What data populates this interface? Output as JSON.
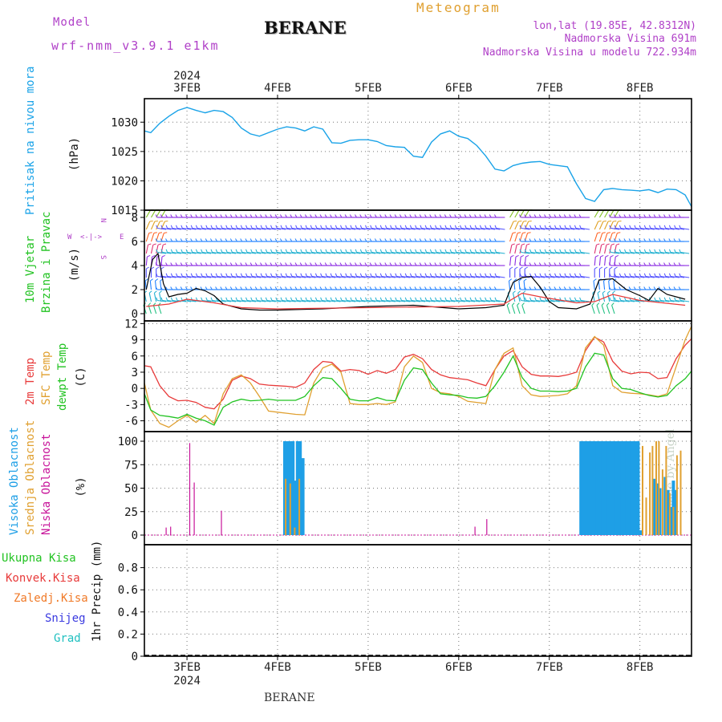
{
  "header": {
    "model_label": "Model",
    "model_name": "wrf-nmm_v3.9.1 e1km",
    "station": "BERANE",
    "meteogram": "Meteogram",
    "lonlat": "lon,lat (19.85E, 42.8312N)",
    "altitude": "Nadmorska Visina 691m",
    "altitude_model": "Nadmorska Visina u modelu 722.934m",
    "footer_station": "BERANE",
    "credit": "made by Angel",
    "year_top": "2024",
    "year_bottom": "2024"
  },
  "colors": {
    "pressure": "#1aa3e8",
    "t2m": "#e83a3a",
    "sfc": "#e0a030",
    "dew": "#22c322",
    "high_cloud": "#1e9fe6",
    "mid_cloud": "#e0a030",
    "low_cloud": "#c8149a",
    "purple": "#b040c8",
    "meteogram": "#e0a030"
  },
  "chart_data": [
    {
      "type": "line",
      "panel": "pressure",
      "ylabels": [
        "Pritisak na nivou mora",
        "(hPa)"
      ],
      "yticks": [
        "1030",
        "1025",
        "1020",
        "1015"
      ],
      "ylim": [
        1015,
        1034
      ],
      "x_days": [
        "3FEB",
        "4FEB",
        "5FEB",
        "6FEB",
        "7FEB",
        "8FEB"
      ],
      "x_start_day": 2.53,
      "x_end_day": 8.57,
      "series": [
        {
          "x": [
            2.53,
            2.6,
            2.7,
            2.8,
            2.9,
            3.0,
            3.1,
            3.2,
            3.3,
            3.4,
            3.5,
            3.6,
            3.7,
            3.8,
            3.9,
            4.0,
            4.1,
            4.2,
            4.3,
            4.4,
            4.5,
            4.6,
            4.7,
            4.8,
            4.9,
            5.0,
            5.1,
            5.2,
            5.3,
            5.4,
            5.5,
            5.6,
            5.7,
            5.8,
            5.9,
            6.0,
            6.1,
            6.2,
            6.3,
            6.4,
            6.5,
            6.6,
            6.7,
            6.8,
            6.9,
            7.0,
            7.1,
            7.2,
            7.3,
            7.4,
            7.5,
            7.6,
            7.7,
            7.8,
            7.9,
            8.0,
            8.1,
            8.2,
            8.3,
            8.4,
            8.5,
            8.57
          ],
          "y": [
            1028.5,
            1028.2,
            1029.8,
            1031.0,
            1032.0,
            1032.5,
            1032.0,
            1031.6,
            1032.0,
            1031.8,
            1030.8,
            1029.0,
            1028.0,
            1027.6,
            1028.2,
            1028.8,
            1029.2,
            1029.0,
            1028.5,
            1029.2,
            1028.8,
            1026.5,
            1026.4,
            1026.9,
            1027.0,
            1027.0,
            1026.7,
            1026.0,
            1025.8,
            1025.7,
            1024.2,
            1024.0,
            1026.6,
            1028.0,
            1028.5,
            1027.6,
            1027.2,
            1026.0,
            1024.2,
            1022.0,
            1021.7,
            1022.6,
            1023.0,
            1023.2,
            1023.3,
            1022.8,
            1022.6,
            1022.4,
            1019.5,
            1017.0,
            1016.5,
            1018.5,
            1018.7,
            1018.5,
            1018.4,
            1018.3,
            1018.5,
            1018.0,
            1018.6,
            1018.5,
            1017.6,
            1015.6
          ],
          "color": "pressure"
        }
      ]
    },
    {
      "type": "line",
      "panel": "wind",
      "ylabels": [
        "10m Vjetar",
        "Brzina i Pravac",
        "(m/s)"
      ],
      "compass": {
        "w": "W",
        "e": "E",
        "n": "N",
        "s": "S",
        "arrows": "<-|->"
      },
      "yticks": [
        "8",
        "6",
        "4",
        "2",
        "0"
      ],
      "ylim": [
        -0.6,
        8.6
      ],
      "series": [
        {
          "name": "wind speed",
          "x": [
            2.55,
            2.62,
            2.68,
            2.74,
            2.8,
            2.9,
            3.0,
            3.1,
            3.2,
            3.3,
            3.4,
            3.6,
            3.8,
            4.0,
            4.5,
            5.0,
            5.5,
            6.0,
            6.3,
            6.5,
            6.6,
            6.7,
            6.8,
            6.9,
            7.0,
            7.1,
            7.3,
            7.45,
            7.55,
            7.7,
            7.85,
            8.0,
            8.1,
            8.2,
            8.3,
            8.5
          ],
          "y": [
            2.0,
            4.5,
            5.0,
            2.5,
            1.4,
            1.6,
            1.7,
            2.1,
            1.9,
            1.5,
            0.8,
            0.4,
            0.3,
            0.3,
            0.4,
            0.6,
            0.7,
            0.4,
            0.5,
            0.7,
            2.6,
            3.0,
            3.1,
            2.2,
            1.0,
            0.5,
            0.4,
            0.8,
            2.8,
            2.9,
            2.0,
            1.5,
            1.1,
            2.1,
            1.6,
            1.2
          ],
          "color": "black"
        },
        {
          "name": "gust",
          "x": [
            2.55,
            2.8,
            3.0,
            3.3,
            3.6,
            4.0,
            5.0,
            6.0,
            6.5,
            6.7,
            6.9,
            7.3,
            7.5,
            7.7,
            8.0,
            8.5
          ],
          "y": [
            0.6,
            0.8,
            1.2,
            0.9,
            0.5,
            0.4,
            0.5,
            0.6,
            0.8,
            1.7,
            1.4,
            0.9,
            1.0,
            1.6,
            1.1,
            0.7
          ],
          "color": "t2m"
        }
      ]
    },
    {
      "type": "line",
      "panel": "temperature",
      "ylabels": [
        "2m Temp",
        "SFC Temp",
        "dewpt Temp",
        "(C)"
      ],
      "yticks": [
        "12",
        "9",
        "6",
        "3",
        "0",
        "-3",
        "-6"
      ],
      "ylim": [
        -8,
        12.5
      ],
      "series": [
        {
          "name": "2m Temp",
          "color": "t2m",
          "x": [
            2.53,
            2.6,
            2.7,
            2.8,
            2.9,
            3.0,
            3.1,
            3.2,
            3.3,
            3.4,
            3.5,
            3.6,
            3.7,
            3.8,
            3.9,
            4.0,
            4.1,
            4.2,
            4.3,
            4.4,
            4.5,
            4.6,
            4.7,
            4.8,
            4.9,
            5.0,
            5.1,
            5.2,
            5.3,
            5.4,
            5.5,
            5.6,
            5.7,
            5.8,
            5.9,
            6.0,
            6.1,
            6.2,
            6.3,
            6.4,
            6.5,
            6.6,
            6.7,
            6.8,
            6.9,
            7.0,
            7.1,
            7.2,
            7.3,
            7.4,
            7.5,
            7.6,
            7.7,
            7.8,
            7.9,
            8.0,
            8.1,
            8.2,
            8.3,
            8.4,
            8.5,
            8.57
          ],
          "y": [
            4.2,
            4.0,
            0.5,
            -1.5,
            -2.3,
            -2.2,
            -2.6,
            -3.5,
            -3.8,
            -2.0,
            1.5,
            2.3,
            1.8,
            0.8,
            0.6,
            0.5,
            0.4,
            0.2,
            1.0,
            3.5,
            5.0,
            4.8,
            3.2,
            3.5,
            3.3,
            2.6,
            3.3,
            2.8,
            3.5,
            5.8,
            6.3,
            5.5,
            3.5,
            2.5,
            2.0,
            1.8,
            1.6,
            1.0,
            0.5,
            3.5,
            6.0,
            7.0,
            4.0,
            2.6,
            2.3,
            2.3,
            2.2,
            2.5,
            3.0,
            7.0,
            9.5,
            8.6,
            5.0,
            3.2,
            2.7,
            3.0,
            2.9,
            1.8,
            2.0,
            5.5,
            8.0,
            9.2
          ]
        },
        {
          "name": "SFC Temp",
          "color": "sfc",
          "x": [
            2.53,
            2.6,
            2.7,
            2.8,
            2.9,
            3.0,
            3.1,
            3.2,
            3.3,
            3.4,
            3.5,
            3.6,
            3.7,
            3.8,
            3.9,
            4.0,
            4.1,
            4.2,
            4.3,
            4.4,
            4.5,
            4.6,
            4.7,
            4.8,
            4.9,
            5.0,
            5.1,
            5.2,
            5.3,
            5.4,
            5.5,
            5.6,
            5.7,
            5.8,
            5.9,
            6.0,
            6.1,
            6.2,
            6.3,
            6.4,
            6.5,
            6.6,
            6.7,
            6.8,
            6.9,
            7.0,
            7.1,
            7.2,
            7.3,
            7.4,
            7.5,
            7.6,
            7.7,
            7.8,
            7.9,
            8.0,
            8.1,
            8.2,
            8.3,
            8.4,
            8.5,
            8.57
          ],
          "y": [
            1.0,
            -4.0,
            -6.5,
            -7.2,
            -6.0,
            -5.0,
            -6.3,
            -5.0,
            -6.5,
            -1.0,
            1.8,
            2.5,
            1.0,
            -1.5,
            -4.2,
            -4.4,
            -4.6,
            -4.8,
            -4.9,
            1.0,
            3.8,
            4.5,
            3.0,
            -2.8,
            -3.0,
            -3.0,
            -2.8,
            -3.0,
            -2.5,
            4.0,
            6.0,
            4.8,
            0.0,
            -0.8,
            -1.0,
            -1.5,
            -2.4,
            -2.6,
            -2.8,
            3.5,
            6.5,
            7.5,
            0.5,
            -1.2,
            -1.5,
            -1.4,
            -1.3,
            -1.0,
            0.5,
            7.5,
            9.6,
            8.0,
            0.5,
            -0.7,
            -0.9,
            -1.0,
            -1.2,
            -1.5,
            -1.0,
            4.0,
            9.0,
            11.5
          ]
        },
        {
          "name": "dewpt Temp",
          "color": "dew",
          "x": [
            2.53,
            2.6,
            2.7,
            2.8,
            2.9,
            3.0,
            3.1,
            3.2,
            3.3,
            3.4,
            3.5,
            3.6,
            3.7,
            3.8,
            3.9,
            4.0,
            4.1,
            4.2,
            4.3,
            4.4,
            4.5,
            4.6,
            4.7,
            4.8,
            4.9,
            5.0,
            5.1,
            5.2,
            5.3,
            5.4,
            5.5,
            5.6,
            5.7,
            5.8,
            5.9,
            6.0,
            6.1,
            6.2,
            6.3,
            6.4,
            6.5,
            6.6,
            6.7,
            6.8,
            6.9,
            7.0,
            7.1,
            7.2,
            7.3,
            7.4,
            7.5,
            7.6,
            7.7,
            7.8,
            7.9,
            8.0,
            8.1,
            8.2,
            8.3,
            8.4,
            8.5,
            8.57
          ],
          "y": [
            -1.0,
            -4.0,
            -5.0,
            -5.2,
            -5.5,
            -4.8,
            -5.5,
            -6.0,
            -6.8,
            -3.5,
            -2.5,
            -2.0,
            -2.3,
            -2.2,
            -2.0,
            -2.2,
            -2.2,
            -2.2,
            -1.5,
            0.5,
            2.0,
            1.8,
            0.0,
            -2.0,
            -2.3,
            -2.3,
            -1.7,
            -2.2,
            -2.3,
            1.5,
            3.8,
            3.5,
            1.0,
            -1.0,
            -1.2,
            -1.3,
            -1.7,
            -1.8,
            -1.5,
            0.5,
            3.0,
            6.0,
            2.0,
            0.0,
            -0.5,
            -0.5,
            -0.6,
            -0.5,
            0.0,
            4.0,
            6.5,
            6.2,
            1.8,
            0.0,
            -0.2,
            -0.8,
            -1.3,
            -1.6,
            -1.3,
            0.5,
            1.8,
            3.2
          ]
        }
      ]
    },
    {
      "type": "bar",
      "panel": "cloud",
      "ylabels": [
        "Visoka Oblacnost",
        "Srednja Oblacnost",
        "Niska Oblacnost",
        "(%)"
      ],
      "yticks": [
        "100",
        "75",
        "50",
        "25",
        "0"
      ],
      "ylim": [
        0,
        100
      ],
      "series": [
        {
          "name": "Visoka Oblacnost",
          "color": "high_cloud",
          "x": [
            4.08,
            4.11,
            4.13,
            4.15,
            4.17,
            4.2,
            4.22,
            4.25,
            4.28,
            7.35,
            7.38,
            7.41,
            7.44,
            7.47,
            7.5,
            7.53,
            7.56,
            7.59,
            7.62,
            7.65,
            7.68,
            7.71,
            7.74,
            7.77,
            7.8,
            7.83,
            7.86,
            7.89,
            7.92,
            7.95,
            7.98,
            8.01,
            8.16,
            8.19,
            8.22,
            8.28,
            8.31,
            8.34,
            8.37,
            8.4
          ],
          "y": [
            100,
            100,
            100,
            100,
            100,
            58,
            100,
            100,
            82,
            100,
            100,
            100,
            100,
            100,
            100,
            100,
            100,
            100,
            100,
            100,
            100,
            100,
            100,
            100,
            100,
            100,
            100,
            100,
            100,
            100,
            100,
            5,
            60,
            55,
            50,
            62,
            48,
            30,
            58,
            48
          ]
        },
        {
          "name": "Srednja Oblacnost",
          "color": "mid_cloud",
          "x": [
            4.09,
            4.14,
            4.19,
            4.24,
            8.03,
            8.07,
            8.11,
            8.14,
            8.18,
            8.21,
            8.25,
            8.29,
            8.33,
            8.37,
            8.41,
            8.45
          ],
          "y": [
            60,
            55,
            8,
            60,
            95,
            40,
            88,
            95,
            100,
            100,
            70,
            95,
            45,
            30,
            85,
            90
          ]
        },
        {
          "name": "Niska Oblacnost",
          "color": "low_cloud",
          "x": [
            2.77,
            2.82,
            3.03,
            3.08,
            3.38,
            6.18,
            6.31
          ],
          "y": [
            8,
            9,
            98,
            56,
            26,
            9,
            17
          ]
        }
      ]
    },
    {
      "type": "line",
      "panel": "precip",
      "ylabels": [
        "1hr Precip (mm)"
      ],
      "yticks": [
        "0.8",
        "0.6",
        "0.4",
        "0.2",
        "0"
      ],
      "ylim": [
        0,
        1
      ],
      "legend": [
        "Ukupna Kisa",
        "Konvek.Kisa",
        "Zaledj.Kisa",
        "Snijeg",
        "Grad"
      ],
      "legend_colors": [
        "#22c322",
        "#e83a3a",
        "#f07a28",
        "#3a3ae0",
        "#20c0c0"
      ],
      "series": []
    }
  ]
}
